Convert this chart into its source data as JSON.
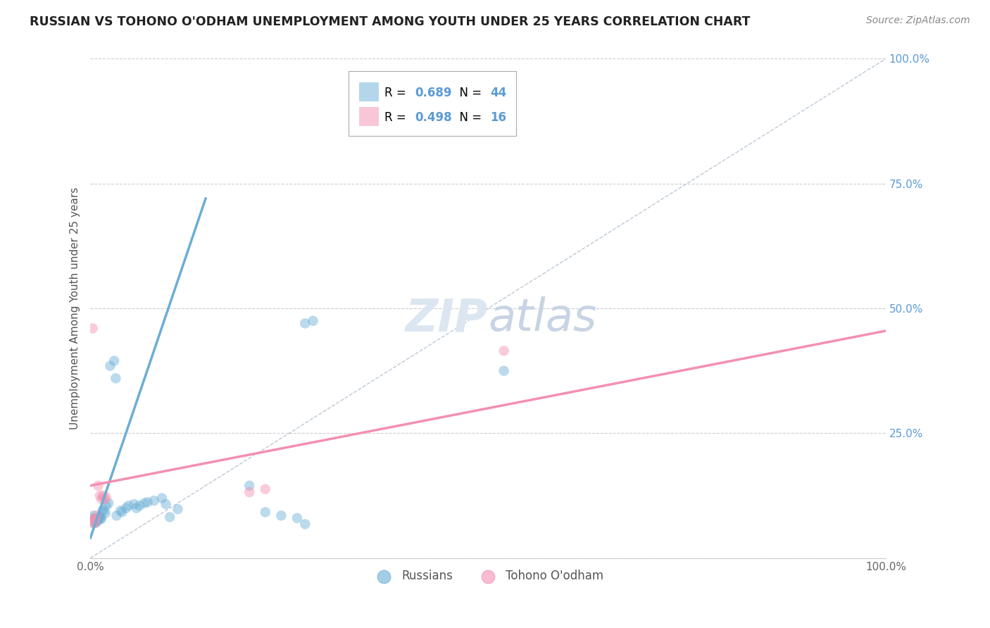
{
  "title": "RUSSIAN VS TOHONO O'ODHAM UNEMPLOYMENT AMONG YOUTH UNDER 25 YEARS CORRELATION CHART",
  "source": "Source: ZipAtlas.com",
  "ylabel": "Unemployment Among Youth under 25 years",
  "xlim": [
    0,
    1
  ],
  "ylim": [
    0,
    1
  ],
  "yticks": [
    0.0,
    0.25,
    0.5,
    0.75,
    1.0
  ],
  "ytick_labels": [
    "",
    "25.0%",
    "50.0%",
    "75.0%",
    "100.0%"
  ],
  "blue_color": "#6aaed6",
  "pink_color": "#f48fb1",
  "legend_color": "#5b9bd5",
  "diagonal_color": "#b0bfd0",
  "grid_color": "#c8c8c8",
  "watermark_color": "#dce6f0",
  "background_color": "#ffffff",
  "blue_R": "0.689",
  "blue_N": "44",
  "pink_R": "0.498",
  "pink_N": "16",
  "blue_scatter": [
    [
      0.003,
      0.08
    ],
    [
      0.003,
      0.075
    ],
    [
      0.004,
      0.085
    ],
    [
      0.005,
      0.07
    ],
    [
      0.006,
      0.075
    ],
    [
      0.007,
      0.075
    ],
    [
      0.008,
      0.072
    ],
    [
      0.009,
      0.075
    ],
    [
      0.01,
      0.078
    ],
    [
      0.011,
      0.08
    ],
    [
      0.012,
      0.082
    ],
    [
      0.013,
      0.078
    ],
    [
      0.014,
      0.08
    ],
    [
      0.015,
      0.095
    ],
    [
      0.017,
      0.095
    ],
    [
      0.019,
      0.09
    ],
    [
      0.02,
      0.105
    ],
    [
      0.023,
      0.11
    ],
    [
      0.025,
      0.385
    ],
    [
      0.03,
      0.395
    ],
    [
      0.032,
      0.36
    ],
    [
      0.033,
      0.085
    ],
    [
      0.038,
      0.095
    ],
    [
      0.04,
      0.092
    ],
    [
      0.045,
      0.1
    ],
    [
      0.048,
      0.105
    ],
    [
      0.055,
      0.108
    ],
    [
      0.058,
      0.1
    ],
    [
      0.062,
      0.105
    ],
    [
      0.068,
      0.11
    ],
    [
      0.072,
      0.112
    ],
    [
      0.08,
      0.115
    ],
    [
      0.09,
      0.12
    ],
    [
      0.095,
      0.108
    ],
    [
      0.1,
      0.082
    ],
    [
      0.11,
      0.098
    ],
    [
      0.2,
      0.145
    ],
    [
      0.22,
      0.092
    ],
    [
      0.24,
      0.085
    ],
    [
      0.26,
      0.08
    ],
    [
      0.27,
      0.068
    ],
    [
      0.52,
      0.375
    ],
    [
      0.27,
      0.47
    ],
    [
      0.28,
      0.475
    ]
  ],
  "pink_scatter": [
    [
      0.003,
      0.46
    ],
    [
      0.003,
      0.075
    ],
    [
      0.005,
      0.078
    ],
    [
      0.006,
      0.078
    ],
    [
      0.008,
      0.085
    ],
    [
      0.01,
      0.145
    ],
    [
      0.012,
      0.125
    ],
    [
      0.014,
      0.118
    ],
    [
      0.016,
      0.125
    ],
    [
      0.018,
      0.118
    ],
    [
      0.02,
      0.122
    ],
    [
      0.2,
      0.132
    ],
    [
      0.22,
      0.138
    ],
    [
      0.52,
      0.415
    ],
    [
      0.003,
      0.07
    ],
    [
      0.006,
      0.07
    ]
  ],
  "blue_line_x": [
    0.0,
    0.145
  ],
  "blue_line_y": [
    0.04,
    0.72
  ],
  "pink_line_x": [
    0.0,
    1.0
  ],
  "pink_line_y": [
    0.145,
    0.455
  ],
  "diagonal_line": [
    [
      0.0,
      0.0
    ],
    [
      1.0,
      1.0
    ]
  ]
}
